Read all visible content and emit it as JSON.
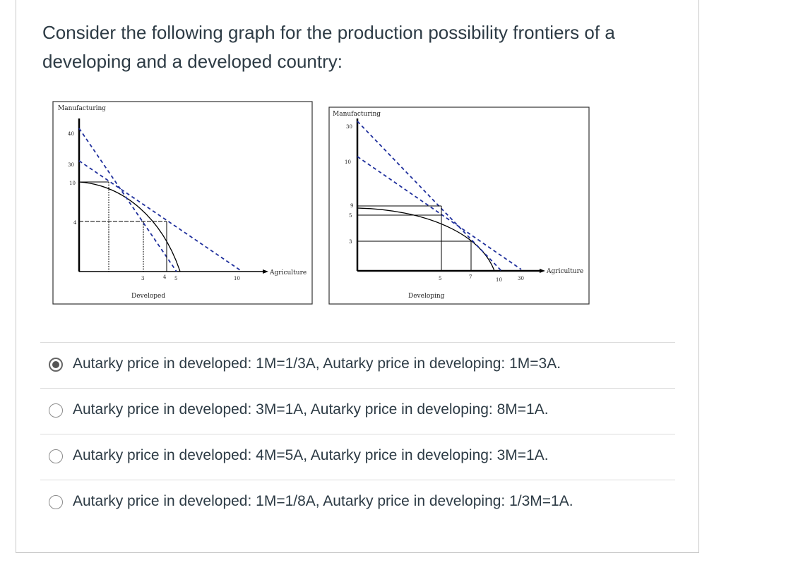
{
  "question": {
    "text": "Consider the following graph for the production possibility frontiers of a developing and a developed country:"
  },
  "figure": {
    "developed": {
      "y_axis_label": "Manufacturing",
      "x_axis_label": "Agriculture",
      "caption": "Developed",
      "y_ticks": [
        "40",
        "30",
        "10",
        "4"
      ],
      "x_ticks": [
        "3",
        "4",
        "5",
        "10"
      ]
    },
    "developing": {
      "y_axis_label": "Manufacturing",
      "x_axis_label": "Agriculture",
      "caption": "Developing",
      "y_ticks": [
        "30",
        "10",
        "9",
        "5",
        "3"
      ],
      "x_ticks": [
        "5",
        "7",
        "10",
        "30"
      ]
    },
    "colors": {
      "tangent_lines": "#1f2f9c",
      "axes": "#000000"
    }
  },
  "options": [
    {
      "label": "Autarky price in developed: 1M=1/3A, Autarky price in developing: 1M=3A.",
      "selected": true
    },
    {
      "label": "Autarky price in developed: 3M=1A, Autarky price in developing: 8M=1A.",
      "selected": false
    },
    {
      "label": "Autarky price in developed: 4M=5A, Autarky price in developing: 3M=1A.",
      "selected": false
    },
    {
      "label": "Autarky price in developed: 1M=1/8A, Autarky price in developing: 1/3M=1A.",
      "selected": false
    }
  ]
}
